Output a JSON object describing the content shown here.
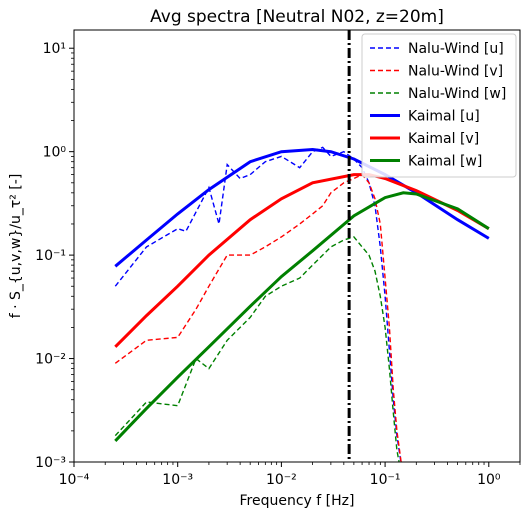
{
  "chart_data": {
    "type": "line",
    "title": "Avg spectra [Neutral N02, z=20m]",
    "xlabel": "Frequency f [Hz]",
    "ylabel": "f · S_{u,v,w}/u_τ² [-]",
    "xscale": "log",
    "yscale": "log",
    "xlim": [
      0.0001,
      2
    ],
    "ylim": [
      0.001,
      15
    ],
    "x_tick_labels": [
      "10⁻⁴",
      "10⁻³",
      "10⁻²",
      "10⁻¹",
      "10⁰"
    ],
    "y_tick_labels": [
      "10⁻³",
      "10⁻²",
      "10⁻¹",
      "10⁰",
      "10¹"
    ],
    "legend_position": "top-right",
    "vertical_line": {
      "x": 0.045,
      "style": "dash-dot",
      "color": "#000000"
    },
    "series": [
      {
        "name": "Nalu-Wind [u]",
        "style": "dashed",
        "color": "#0000ff",
        "x": [
          0.00025,
          0.0005,
          0.001,
          0.0012,
          0.002,
          0.0025,
          0.003,
          0.004,
          0.005,
          0.007,
          0.01,
          0.015,
          0.02,
          0.025,
          0.03,
          0.04,
          0.05,
          0.06,
          0.07,
          0.08,
          0.09,
          0.1,
          0.11,
          0.12,
          0.13,
          0.15
        ],
        "values": [
          0.05,
          0.12,
          0.18,
          0.17,
          0.45,
          0.2,
          0.75,
          0.55,
          0.6,
          0.8,
          0.9,
          0.7,
          1.0,
          1.1,
          0.9,
          1.0,
          0.85,
          0.7,
          0.5,
          0.3,
          0.12,
          0.04,
          0.012,
          0.004,
          0.0018,
          0.0007
        ]
      },
      {
        "name": "Nalu-Wind [v]",
        "style": "dashed",
        "color": "#ff0000",
        "x": [
          0.00025,
          0.0005,
          0.001,
          0.0015,
          0.002,
          0.003,
          0.005,
          0.007,
          0.01,
          0.015,
          0.02,
          0.025,
          0.03,
          0.04,
          0.05,
          0.06,
          0.07,
          0.08,
          0.09,
          0.1,
          0.11,
          0.12,
          0.13,
          0.15
        ],
        "values": [
          0.009,
          0.015,
          0.016,
          0.03,
          0.05,
          0.1,
          0.1,
          0.12,
          0.15,
          0.2,
          0.25,
          0.3,
          0.4,
          0.5,
          0.55,
          0.6,
          0.5,
          0.35,
          0.2,
          0.06,
          0.02,
          0.005,
          0.002,
          0.0007
        ]
      },
      {
        "name": "Nalu-Wind [w]",
        "style": "dashed",
        "color": "#008000",
        "x": [
          0.00025,
          0.0005,
          0.001,
          0.0015,
          0.002,
          0.003,
          0.005,
          0.007,
          0.01,
          0.015,
          0.02,
          0.025,
          0.03,
          0.04,
          0.05,
          0.06,
          0.07,
          0.08,
          0.09,
          0.1,
          0.11,
          0.12,
          0.13,
          0.15
        ],
        "values": [
          0.0018,
          0.0038,
          0.0035,
          0.01,
          0.008,
          0.015,
          0.025,
          0.04,
          0.05,
          0.06,
          0.08,
          0.1,
          0.12,
          0.14,
          0.15,
          0.12,
          0.1,
          0.07,
          0.04,
          0.02,
          0.008,
          0.003,
          0.0013,
          0.0006
        ]
      },
      {
        "name": "Kaimal [u]",
        "style": "solid",
        "color": "#0000ff",
        "x": [
          0.00025,
          0.0005,
          0.001,
          0.002,
          0.005,
          0.01,
          0.02,
          0.03,
          0.05,
          0.1,
          0.2,
          0.5,
          1.0
        ],
        "values": [
          0.078,
          0.14,
          0.25,
          0.43,
          0.8,
          1.0,
          1.05,
          1.0,
          0.85,
          0.6,
          0.4,
          0.22,
          0.145
        ]
      },
      {
        "name": "Kaimal [v]",
        "style": "solid",
        "color": "#ff0000",
        "x": [
          0.00025,
          0.0005,
          0.001,
          0.002,
          0.005,
          0.01,
          0.02,
          0.05,
          0.07,
          0.1,
          0.2,
          0.5,
          1.0
        ],
        "values": [
          0.013,
          0.026,
          0.05,
          0.1,
          0.22,
          0.35,
          0.5,
          0.6,
          0.6,
          0.55,
          0.42,
          0.27,
          0.18
        ]
      },
      {
        "name": "Kaimal [w]",
        "style": "solid",
        "color": "#008000",
        "x": [
          0.00025,
          0.0005,
          0.001,
          0.002,
          0.005,
          0.01,
          0.02,
          0.05,
          0.1,
          0.15,
          0.2,
          0.5,
          1.0
        ],
        "values": [
          0.0016,
          0.0033,
          0.0066,
          0.013,
          0.032,
          0.062,
          0.11,
          0.24,
          0.36,
          0.4,
          0.39,
          0.28,
          0.18
        ]
      }
    ]
  }
}
